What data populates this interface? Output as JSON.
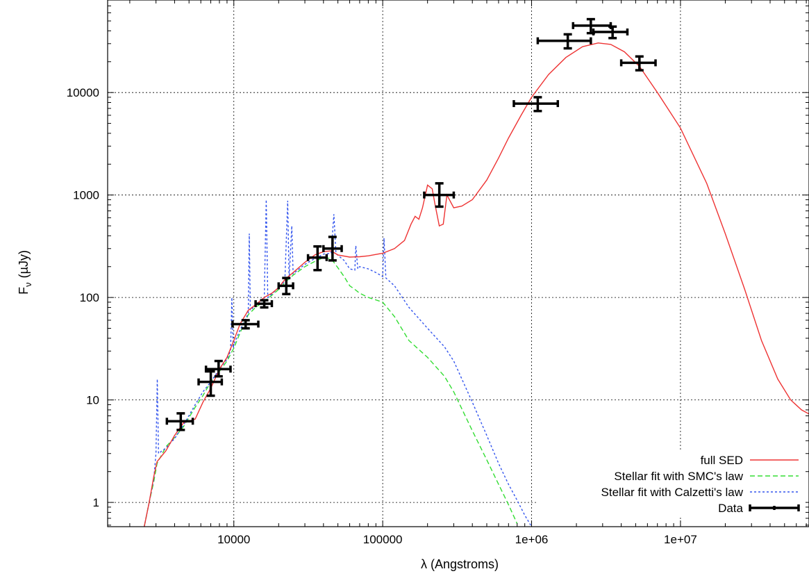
{
  "chart_data": {
    "type": "line",
    "xlabel": "λ (Angstroms)",
    "ylabel_main": "F",
    "ylabel_sub": "ν",
    "ylabel_unit": "(µJy)",
    "xscale": "log",
    "yscale": "log",
    "xlim": [
      1420,
      73000000
    ],
    "ylim": [
      0.58,
      80000
    ],
    "grid": true,
    "legend_position": "bottom-right",
    "x_ticks": [
      {
        "value": 10000,
        "label": "10000"
      },
      {
        "value": 100000,
        "label": "100000"
      },
      {
        "value": 1000000,
        "label": "1e+06"
      },
      {
        "value": 10000000,
        "label": "1e+07"
      }
    ],
    "y_ticks": [
      {
        "value": 1,
        "label": "1"
      },
      {
        "value": 10,
        "label": "10"
      },
      {
        "value": 100,
        "label": "100"
      },
      {
        "value": 1000,
        "label": "1000"
      },
      {
        "value": 10000,
        "label": "10000"
      }
    ],
    "colors": {
      "full_sed": "#ee3333",
      "smc": "#33dd33",
      "calzetti": "#3355ee",
      "data": "#000000",
      "grid": "#000000"
    },
    "series": [
      {
        "name": "full SED",
        "style": "solid",
        "color": "#ee3333",
        "points": [
          [
            2500,
            0.55
          ],
          [
            2700,
            1.0
          ],
          [
            2900,
            1.8
          ],
          [
            3050,
            2.5
          ],
          [
            3500,
            3.2
          ],
          [
            4000,
            4.5
          ],
          [
            4600,
            6.0
          ],
          [
            5500,
            6.5
          ],
          [
            6200,
            9.5
          ],
          [
            7000,
            13
          ],
          [
            8000,
            20
          ],
          [
            9000,
            26
          ],
          [
            10000,
            38
          ],
          [
            11000,
            55
          ],
          [
            12500,
            75
          ],
          [
            14000,
            85
          ],
          [
            16000,
            100
          ],
          [
            18000,
            110
          ],
          [
            20000,
            125
          ],
          [
            22000,
            150
          ],
          [
            25000,
            175
          ],
          [
            30000,
            220
          ],
          [
            35000,
            260
          ],
          [
            40000,
            280
          ],
          [
            45000,
            285
          ],
          [
            50000,
            260
          ],
          [
            60000,
            248
          ],
          [
            70000,
            250
          ],
          [
            80000,
            255
          ],
          [
            100000,
            270
          ],
          [
            120000,
            300
          ],
          [
            140000,
            360
          ],
          [
            155000,
            520
          ],
          [
            165000,
            620
          ],
          [
            175000,
            580
          ],
          [
            185000,
            750
          ],
          [
            200000,
            1250
          ],
          [
            215000,
            1150
          ],
          [
            225000,
            800
          ],
          [
            240000,
            500
          ],
          [
            255000,
            520
          ],
          [
            270000,
            1000
          ],
          [
            300000,
            750
          ],
          [
            340000,
            780
          ],
          [
            400000,
            900
          ],
          [
            500000,
            1400
          ],
          [
            600000,
            2300
          ],
          [
            700000,
            3600
          ],
          [
            850000,
            6000
          ],
          [
            1000000,
            9000
          ],
          [
            1300000,
            15000
          ],
          [
            1700000,
            22000
          ],
          [
            2200000,
            28000
          ],
          [
            2800000,
            30500
          ],
          [
            3400000,
            29500
          ],
          [
            4200000,
            25000
          ],
          [
            5300000,
            18000
          ],
          [
            7000000,
            10000
          ],
          [
            10000000,
            4500
          ],
          [
            15000000,
            1300
          ],
          [
            20000000,
            420
          ],
          [
            27000000,
            120
          ],
          [
            35000000,
            38
          ],
          [
            45000000,
            16
          ],
          [
            55000000,
            10
          ],
          [
            65000000,
            8
          ],
          [
            73000000,
            7.3
          ]
        ]
      },
      {
        "name": "Stellar fit with SMC's law",
        "style": "dashed",
        "color": "#33dd33",
        "points": [
          [
            2500,
            0.55
          ],
          [
            2700,
            1.0
          ],
          [
            2900,
            1.6
          ],
          [
            3050,
            2.4
          ],
          [
            3500,
            3.5
          ],
          [
            4000,
            4.3
          ],
          [
            4600,
            5.5
          ],
          [
            5500,
            8.5
          ],
          [
            6200,
            11
          ],
          [
            7000,
            15
          ],
          [
            8000,
            19
          ],
          [
            9000,
            24
          ],
          [
            10000,
            32
          ],
          [
            11000,
            45
          ],
          [
            12500,
            68
          ],
          [
            14000,
            80
          ],
          [
            16000,
            92
          ],
          [
            18000,
            105
          ],
          [
            20000,
            120
          ],
          [
            22000,
            140
          ],
          [
            25000,
            165
          ],
          [
            30000,
            200
          ],
          [
            35000,
            225
          ],
          [
            40000,
            245
          ],
          [
            45000,
            240
          ],
          [
            50000,
            195
          ],
          [
            55000,
            160
          ],
          [
            60000,
            130
          ],
          [
            65000,
            120
          ],
          [
            70000,
            110
          ],
          [
            80000,
            100
          ],
          [
            100000,
            90
          ],
          [
            120000,
            65
          ],
          [
            150000,
            38
          ],
          [
            200000,
            26
          ],
          [
            260000,
            17
          ],
          [
            300000,
            12
          ],
          [
            400000,
            5
          ],
          [
            500000,
            2.6
          ],
          [
            600000,
            1.5
          ],
          [
            700000,
            0.95
          ],
          [
            800000,
            0.62
          ]
        ]
      },
      {
        "name": "Stellar fit with Calzetti's law",
        "style": "dotted",
        "color": "#3355ee",
        "points": [
          [
            2500,
            0.55
          ],
          [
            2700,
            1.0
          ],
          [
            2900,
            1.7
          ],
          [
            3000,
            3.0
          ],
          [
            3060,
            16
          ],
          [
            3120,
            3.0
          ],
          [
            3500,
            3.4
          ],
          [
            4000,
            4.2
          ],
          [
            4600,
            5.7
          ],
          [
            5500,
            9.0
          ],
          [
            6200,
            12
          ],
          [
            7000,
            15
          ],
          [
            8000,
            20
          ],
          [
            9000,
            25
          ],
          [
            9500,
            30
          ],
          [
            9700,
            100
          ],
          [
            9900,
            32
          ],
          [
            10000,
            35
          ],
          [
            11000,
            48
          ],
          [
            12500,
            70
          ],
          [
            12700,
            420
          ],
          [
            12900,
            75
          ],
          [
            14000,
            84
          ],
          [
            16000,
            95
          ],
          [
            16500,
            900
          ],
          [
            16900,
            100
          ],
          [
            18000,
            108
          ],
          [
            20000,
            125
          ],
          [
            22000,
            145
          ],
          [
            23000,
            880
          ],
          [
            23500,
            150
          ],
          [
            24500,
            500
          ],
          [
            25000,
            170
          ],
          [
            30000,
            210
          ],
          [
            35000,
            240
          ],
          [
            40000,
            265
          ],
          [
            45000,
            270
          ],
          [
            47000,
            650
          ],
          [
            48500,
            268
          ],
          [
            55000,
            230
          ],
          [
            60000,
            190
          ],
          [
            65000,
            185
          ],
          [
            66000,
            320
          ],
          [
            68000,
            190
          ],
          [
            70000,
            200
          ],
          [
            80000,
            190
          ],
          [
            90000,
            175
          ],
          [
            100000,
            160
          ],
          [
            102000,
            380
          ],
          [
            105000,
            155
          ],
          [
            120000,
            130
          ],
          [
            150000,
            80
          ],
          [
            200000,
            50
          ],
          [
            260000,
            33
          ],
          [
            300000,
            24
          ],
          [
            400000,
            9.5
          ],
          [
            500000,
            4.5
          ],
          [
            600000,
            2.4
          ],
          [
            700000,
            1.5
          ],
          [
            800000,
            1.05
          ],
          [
            900000,
            0.75
          ],
          [
            1000000,
            0.55
          ]
        ]
      }
    ],
    "data_points": {
      "name": "Data",
      "color": "#000000",
      "points": [
        {
          "x": 4400,
          "y": 6.2,
          "xlo": 3550,
          "xhi": 5300,
          "ylo": 5.1,
          "yhi": 7.4
        },
        {
          "x": 7000,
          "y": 15,
          "xlo": 5800,
          "xhi": 8300,
          "ylo": 11,
          "yhi": 19
        },
        {
          "x": 7900,
          "y": 20,
          "xlo": 6500,
          "xhi": 9500,
          "ylo": 17,
          "yhi": 24
        },
        {
          "x": 12000,
          "y": 55,
          "xlo": 9800,
          "xhi": 14600,
          "ylo": 50,
          "yhi": 60
        },
        {
          "x": 16000,
          "y": 87,
          "xlo": 14000,
          "xhi": 18000,
          "ylo": 80,
          "yhi": 94
        },
        {
          "x": 22500,
          "y": 130,
          "xlo": 20000,
          "xhi": 25000,
          "ylo": 108,
          "yhi": 155
        },
        {
          "x": 36500,
          "y": 245,
          "xlo": 31500,
          "xhi": 42000,
          "ylo": 185,
          "yhi": 315
        },
        {
          "x": 46000,
          "y": 300,
          "xlo": 40000,
          "xhi": 53000,
          "ylo": 230,
          "yhi": 390
        },
        {
          "x": 240000,
          "y": 1000,
          "xlo": 190000,
          "xhi": 300000,
          "ylo": 770,
          "yhi": 1300
        },
        {
          "x": 1100000,
          "y": 7800,
          "xlo": 760000,
          "xhi": 1500000,
          "ylo": 6600,
          "yhi": 9000
        },
        {
          "x": 1750000,
          "y": 32000,
          "xlo": 1100000,
          "xhi": 2500000,
          "ylo": 27000,
          "yhi": 37000
        },
        {
          "x": 2500000,
          "y": 45000,
          "xlo": 1900000,
          "xhi": 3400000,
          "ylo": 38000,
          "yhi": 52000
        },
        {
          "x": 3500000,
          "y": 39000,
          "xlo": 2600000,
          "xhi": 4400000,
          "ylo": 34000,
          "yhi": 44000
        },
        {
          "x": 5300000,
          "y": 19500,
          "xlo": 4000000,
          "xhi": 6800000,
          "ylo": 16500,
          "yhi": 22500
        }
      ]
    }
  }
}
